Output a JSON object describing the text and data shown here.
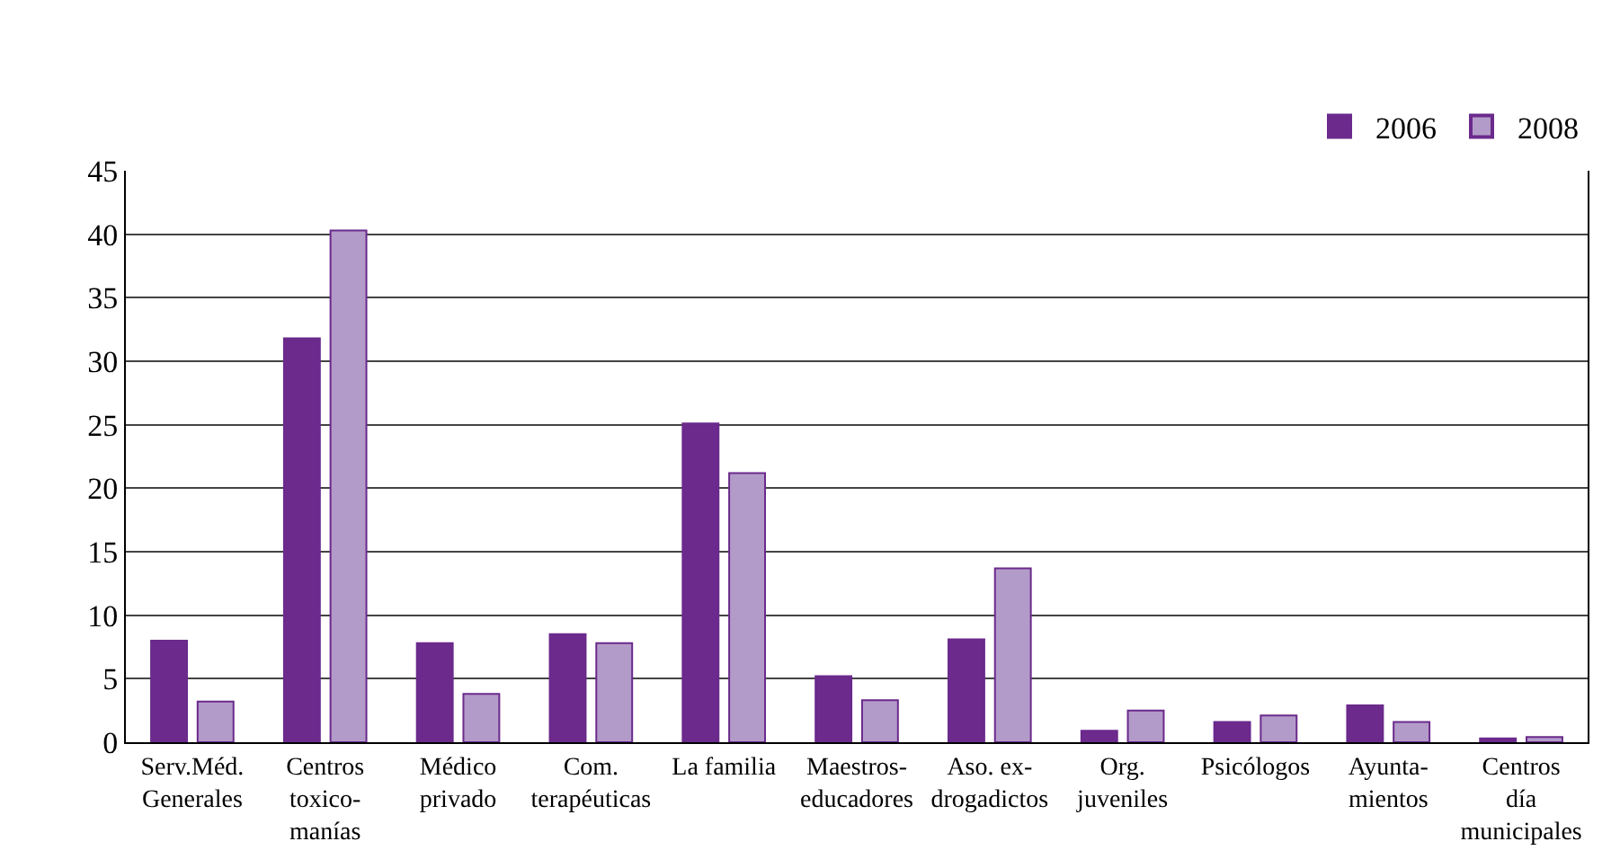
{
  "chart_data": {
    "type": "bar",
    "categories": [
      "Serv.Méd.\nGenerales",
      "Centros\ntoxico-\nmanías",
      "Médico\nprivado",
      "Com.\nterapéuticas",
      "La familia",
      "Maestros-\neducadores",
      "Aso. ex-\ndrogadictos",
      "Org.\njuveniles",
      "Psicólogos",
      "Ayunta-\nmientos",
      "Centros\ndía\nmunicipales"
    ],
    "series": [
      {
        "name": "2006",
        "color": "#6b2a8c",
        "values": [
          8.0,
          31.8,
          7.8,
          8.5,
          25.1,
          5.2,
          8.1,
          0.9,
          1.6,
          2.9,
          0.3
        ]
      },
      {
        "name": "2008",
        "color": "#b39bc9",
        "values": [
          3.2,
          40.3,
          3.8,
          7.8,
          21.2,
          3.3,
          13.7,
          2.5,
          2.1,
          1.6,
          0.4
        ]
      }
    ],
    "ylim": [
      0,
      45
    ],
    "yticks": [
      0,
      5,
      10,
      15,
      20,
      25,
      30,
      35,
      40,
      45
    ],
    "grid": "y",
    "legend": "top right"
  }
}
